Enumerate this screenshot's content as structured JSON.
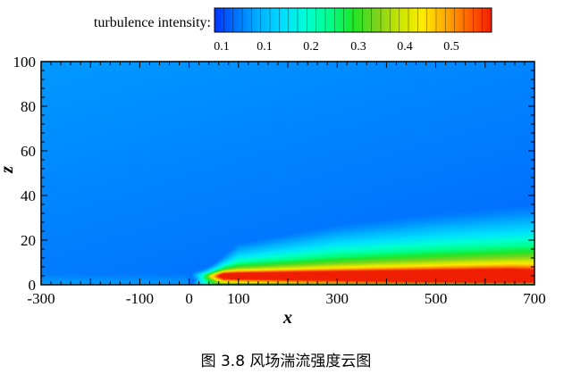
{
  "caption": "图 3.8 风场湍流强度云图",
  "chart_data": {
    "type": "heatmap",
    "title": "",
    "xlabel": "x",
    "ylabel": "z",
    "xlim": [
      -300,
      700
    ],
    "ylim": [
      0,
      100
    ],
    "x_ticks": [
      -300,
      -100,
      0,
      100,
      300,
      500,
      700
    ],
    "y_ticks": [
      0,
      20,
      40,
      60,
      80,
      100
    ],
    "colorbar": {
      "label": "turbulence intensity:",
      "tick_labels": [
        "0.1",
        "0.1",
        "0.2",
        "0.3",
        "0.4",
        "0.5"
      ],
      "color_stops": [
        "#0033ff",
        "#0077ff",
        "#00b4ff",
        "#00e0ff",
        "#00ffd2",
        "#00ff88",
        "#1ee628",
        "#7ad21e",
        "#c8e600",
        "#ffeb00",
        "#ffaa00",
        "#ff6400",
        "#f01e00"
      ],
      "levels": 30,
      "position": "top"
    },
    "field": {
      "source_x": 0,
      "ambient_min": 0.08,
      "ambient_max": 0.13,
      "boundary_layer_height": [
        [
          0,
          0
        ],
        [
          100,
          16
        ],
        [
          300,
          23
        ],
        [
          500,
          27
        ],
        [
          700,
          30
        ]
      ],
      "peak_value": 0.58,
      "peak_height": 4,
      "peak_extent_x": [
        40,
        650
      ]
    }
  }
}
